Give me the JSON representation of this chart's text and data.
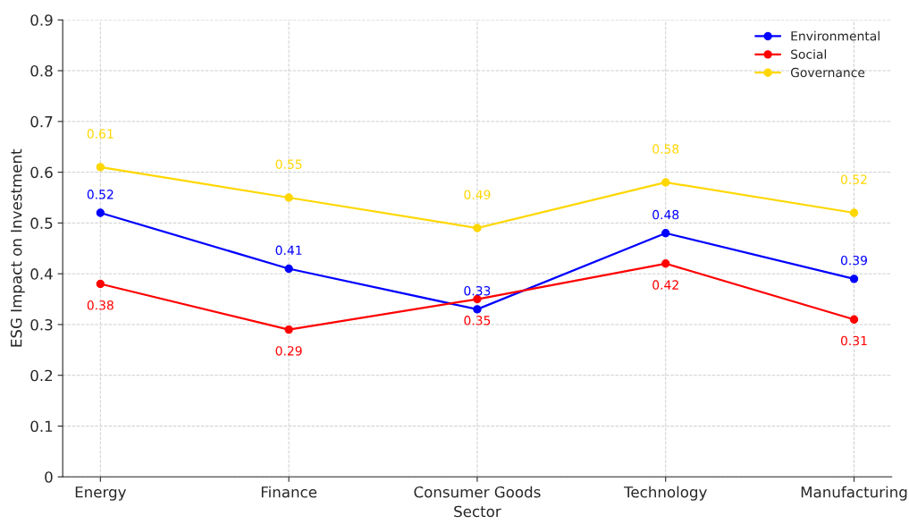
{
  "chart_data": {
    "type": "line",
    "xlabel": "Sector",
    "ylabel": "ESG Impact on Investment",
    "categories": [
      "Energy",
      "Finance",
      "Consumer Goods",
      "Technology",
      "Manufacturing"
    ],
    "series": [
      {
        "name": "Environmental",
        "color": "#0000ff",
        "values": [
          0.52,
          0.41,
          0.33,
          0.48,
          0.39
        ]
      },
      {
        "name": "Social",
        "color": "#ff0000",
        "values": [
          0.38,
          0.29,
          0.35,
          0.42,
          0.31
        ]
      },
      {
        "name": "Governance",
        "color": "#ffd700",
        "values": [
          0.61,
          0.55,
          0.49,
          0.58,
          0.52
        ]
      }
    ],
    "ylim": [
      0,
      0.9
    ],
    "yticks": [
      0,
      0.1,
      0.2,
      0.3,
      0.4,
      0.5,
      0.6,
      0.7,
      0.8,
      0.9
    ],
    "grid": true,
    "legend": "top right",
    "marker": "circle",
    "line_style": "solid",
    "data_labels": true
  }
}
